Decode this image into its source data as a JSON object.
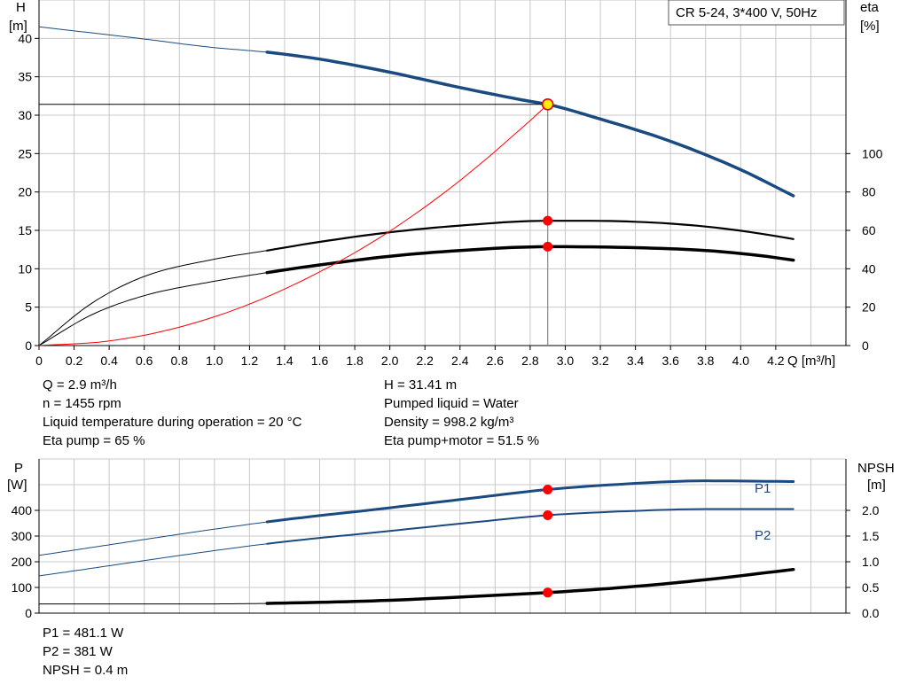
{
  "chart_data": [
    {
      "type": "line",
      "title": "CR 5-24, 3*400 V, 50Hz",
      "xlabel": "Q [m³/h]",
      "ylabel": "H [m]",
      "y2label": "eta [%]",
      "xlim": [
        0,
        4.6
      ],
      "ylim": [
        0,
        45
      ],
      "y2lim": [
        0,
        180
      ],
      "x_ticks": [
        "0",
        "0.2",
        "0.4",
        "0.6",
        "0.8",
        "1.0",
        "1.2",
        "1.4",
        "1.6",
        "1.8",
        "2.0",
        "2.2",
        "2.4",
        "2.6",
        "2.8",
        "3.0",
        "3.2",
        "3.4",
        "3.6",
        "3.8",
        "4.0",
        "4.2"
      ],
      "y_ticks": [
        "0",
        "5",
        "10",
        "15",
        "20",
        "25",
        "30",
        "35",
        "40"
      ],
      "y2_ticks": [
        "0",
        "20",
        "40",
        "60",
        "80",
        "100"
      ],
      "grid": true,
      "operating_point": {
        "x": 2.9,
        "y": 31.41
      },
      "series": [
        {
          "role": "H",
          "axis": "left",
          "color": "#1a4a80",
          "strong_from": 1.3,
          "x": [
            0,
            0.5,
            1.0,
            1.3,
            1.6,
            2.0,
            2.4,
            2.8,
            2.9,
            3.2,
            3.6,
            4.0,
            4.3
          ],
          "y": [
            41.5,
            40.2,
            38.8,
            38.2,
            37.3,
            35.6,
            33.6,
            31.8,
            31.41,
            29.5,
            26.6,
            22.9,
            19.5
          ]
        },
        {
          "role": "eta_pump",
          "axis": "right",
          "color": "#000000",
          "strong_from": 1.3,
          "x": [
            0,
            0.3,
            0.6,
            1.0,
            1.3,
            1.6,
            2.0,
            2.4,
            2.9,
            3.4,
            3.8,
            4.1,
            4.3
          ],
          "y": [
            0,
            22,
            36,
            45,
            49.5,
            54,
            59,
            62.5,
            65,
            64.5,
            62,
            58.5,
            55.5
          ]
        },
        {
          "role": "eta_pump_motor",
          "axis": "right",
          "color": "#000000",
          "strong_from": 1.3,
          "x": [
            0,
            0.3,
            0.6,
            1.0,
            1.3,
            1.6,
            2.0,
            2.4,
            2.9,
            3.4,
            3.8,
            4.1,
            4.3
          ],
          "y": [
            0,
            16,
            26,
            33.5,
            38,
            42,
            46.5,
            49.5,
            51.5,
            51,
            49.5,
            47,
            44.5
          ]
        },
        {
          "role": "system",
          "axis": "left",
          "color": "#ff0000",
          "strong_from": 99,
          "x": [
            0,
            0.4,
            0.8,
            1.2,
            1.6,
            2.0,
            2.4,
            2.8,
            2.9
          ],
          "y": [
            0,
            0.6,
            2.4,
            5.4,
            9.6,
            14.9,
            21.5,
            29.3,
            31.41
          ]
        }
      ],
      "markers": [
        {
          "axis": "right",
          "x": 2.9,
          "y": 65
        },
        {
          "axis": "right",
          "x": 2.9,
          "y": 51.5
        }
      ]
    },
    {
      "type": "line",
      "ylabel": "P [W]",
      "y2label": "NPSH [m]",
      "xlim": [
        0,
        4.6
      ],
      "ylim": [
        0,
        600
      ],
      "y2lim": [
        0,
        3.0
      ],
      "y_ticks": [
        "0",
        "100",
        "200",
        "300",
        "400"
      ],
      "y2_ticks": [
        "0.0",
        "0.5",
        "1.0",
        "1.5",
        "2.0"
      ],
      "grid": true,
      "series": [
        {
          "name": "P1",
          "axis": "left",
          "color": "#1a4a80",
          "strong_from": 1.3,
          "x": [
            0,
            1.3,
            2.0,
            2.5,
            2.9,
            3.4,
            3.8,
            4.3
          ],
          "y": [
            225,
            355,
            410,
            450,
            481.1,
            505,
            515,
            512
          ]
        },
        {
          "name": "P2",
          "axis": "left",
          "color": "#1a4a80",
          "strong_from": 1.3,
          "x": [
            0,
            1.3,
            2.0,
            2.5,
            2.9,
            3.4,
            3.8,
            4.3
          ],
          "y": [
            145,
            270,
            320,
            355,
            381,
            398,
            405,
            405
          ]
        },
        {
          "role": "NPSH",
          "axis": "right",
          "color": "#000000",
          "strong_from": 1.3,
          "x": [
            0,
            1.0,
            1.3,
            2.0,
            2.5,
            2.9,
            3.4,
            3.8,
            4.3
          ],
          "y": [
            0.18,
            0.18,
            0.19,
            0.25,
            0.33,
            0.4,
            0.52,
            0.65,
            0.85
          ]
        }
      ],
      "markers": [
        {
          "axis": "left",
          "x": 2.9,
          "y": 481.1
        },
        {
          "axis": "left",
          "x": 2.9,
          "y": 381
        },
        {
          "axis": "right",
          "x": 2.9,
          "y": 0.4
        }
      ]
    }
  ],
  "labels": {
    "h_axis_label": "H",
    "h_axis_unit": "[m]",
    "eta_axis_label": "eta",
    "eta_axis_unit": "[%]",
    "q_axis_label": "Q [m³/h]",
    "p_axis_label": "P",
    "p_axis_unit": "[W]",
    "npsh_axis_label": "NPSH",
    "npsh_axis_unit": "[m]",
    "p1_label": "P1",
    "p2_label": "P2"
  },
  "info_top_left": [
    "Q = 2.9 m³/h",
    "n = 1455 rpm",
    "Liquid temperature during operation = 20 °C",
    "Eta pump = 65 %"
  ],
  "info_top_right": [
    "H = 31.41 m",
    "Pumped liquid = Water",
    "Density = 998.2 kg/m³",
    "Eta pump+motor = 51.5 %"
  ],
  "info_bottom": [
    "P1 = 481.1 W",
    "P2 = 381 W",
    "NPSH = 0.4 m"
  ]
}
